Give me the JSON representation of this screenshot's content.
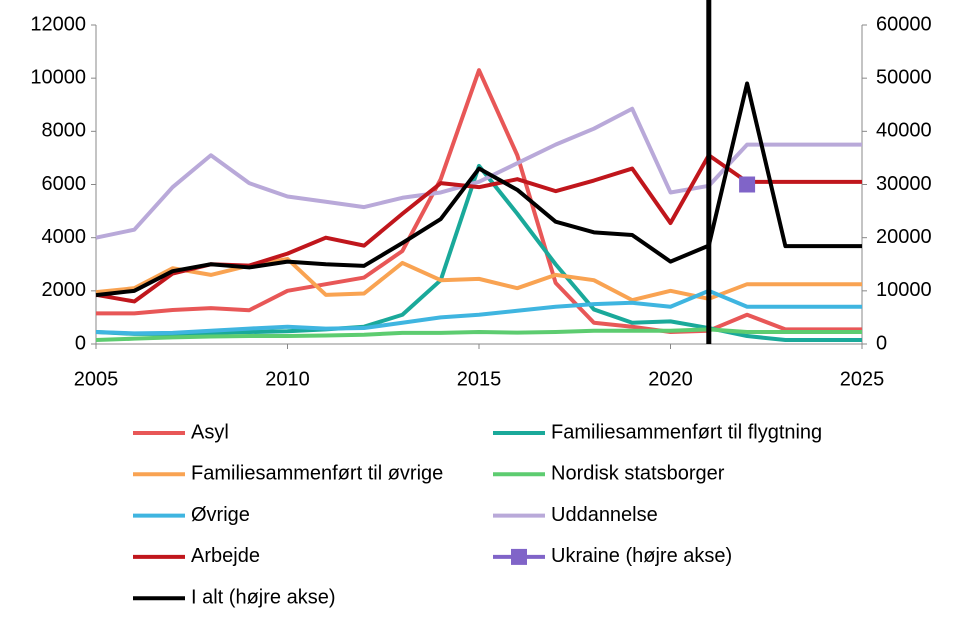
{
  "chart_data": {
    "type": "line",
    "x": [
      2005,
      2006,
      2007,
      2008,
      2009,
      2010,
      2011,
      2012,
      2013,
      2014,
      2015,
      2016,
      2017,
      2018,
      2019,
      2020,
      2021,
      2022,
      2023,
      2024,
      2025
    ],
    "xlim": [
      2005,
      2025
    ],
    "xticks": [
      2005,
      2010,
      2015,
      2020,
      2025
    ],
    "ylim": [
      0,
      12000
    ],
    "yticks": [
      0,
      2000,
      4000,
      6000,
      8000,
      10000,
      12000
    ],
    "y2lim": [
      0,
      60000
    ],
    "y2ticks": [
      0,
      10000,
      20000,
      30000,
      40000,
      50000,
      60000
    ],
    "reference_line_x": 2021,
    "series": [
      {
        "name": "Asyl",
        "color": "#e85757",
        "values": [
          1150,
          1150,
          1280,
          1350,
          1270,
          2000,
          2250,
          2500,
          3500,
          6200,
          10300,
          7100,
          2300,
          800,
          650,
          450,
          500,
          1100,
          550,
          550,
          550
        ]
      },
      {
        "name": "Familiesammenført til flygtning",
        "color": "#1aa99a",
        "values": [
          450,
          380,
          380,
          420,
          450,
          480,
          550,
          650,
          1100,
          2400,
          6700,
          4900,
          3000,
          1300,
          800,
          850,
          600,
          300,
          150,
          150,
          150
        ]
      },
      {
        "name": "Familiesammenført til øvrige",
        "color": "#f9a352",
        "values": [
          1950,
          2100,
          2850,
          2600,
          2950,
          3200,
          1850,
          1900,
          3050,
          2400,
          2450,
          2100,
          2600,
          2400,
          1650,
          2000,
          1700,
          2250,
          2250,
          2250,
          2250
        ]
      },
      {
        "name": "Nordisk statsborger",
        "color": "#5dcc70",
        "values": [
          150,
          200,
          250,
          280,
          300,
          300,
          320,
          350,
          420,
          420,
          450,
          430,
          450,
          500,
          500,
          500,
          550,
          450,
          450,
          450,
          450
        ]
      },
      {
        "name": "Øvrige",
        "color": "#3fb5e0",
        "values": [
          450,
          400,
          420,
          500,
          580,
          650,
          580,
          600,
          800,
          1000,
          1100,
          1250,
          1400,
          1500,
          1550,
          1400,
          2000,
          1400,
          1400,
          1400,
          1400
        ]
      },
      {
        "name": "Uddannelse",
        "color": "#b9a9d9",
        "values": [
          4000,
          4300,
          5900,
          7100,
          6050,
          5550,
          5350,
          5150,
          5500,
          5700,
          6100,
          6800,
          7500,
          8100,
          8850,
          5700,
          5950,
          7500,
          7500,
          7500,
          7500
        ]
      },
      {
        "name": "Arbejde",
        "color": "#c0161c",
        "values": [
          1850,
          1600,
          2650,
          3000,
          2950,
          3400,
          4000,
          3700,
          4900,
          6050,
          5900,
          6200,
          5750,
          6150,
          6600,
          4550,
          7100,
          6100,
          6100,
          6100,
          6100
        ]
      },
      {
        "name": "Ukraine (højre akse)",
        "color": "#8064c8",
        "axis": "y2",
        "marker": "square",
        "values": [
          null,
          null,
          null,
          null,
          null,
          null,
          null,
          null,
          null,
          null,
          null,
          null,
          null,
          null,
          null,
          null,
          null,
          30000,
          null,
          null,
          null
        ]
      },
      {
        "name": "I alt (højre akse)",
        "color": "#000000",
        "axis": "y2",
        "values": [
          9200,
          10000,
          13700,
          15000,
          14400,
          15500,
          15000,
          14700,
          19000,
          23500,
          33000,
          29000,
          23000,
          21000,
          20500,
          15500,
          18500,
          49000,
          18400,
          18400,
          18400
        ]
      }
    ]
  }
}
